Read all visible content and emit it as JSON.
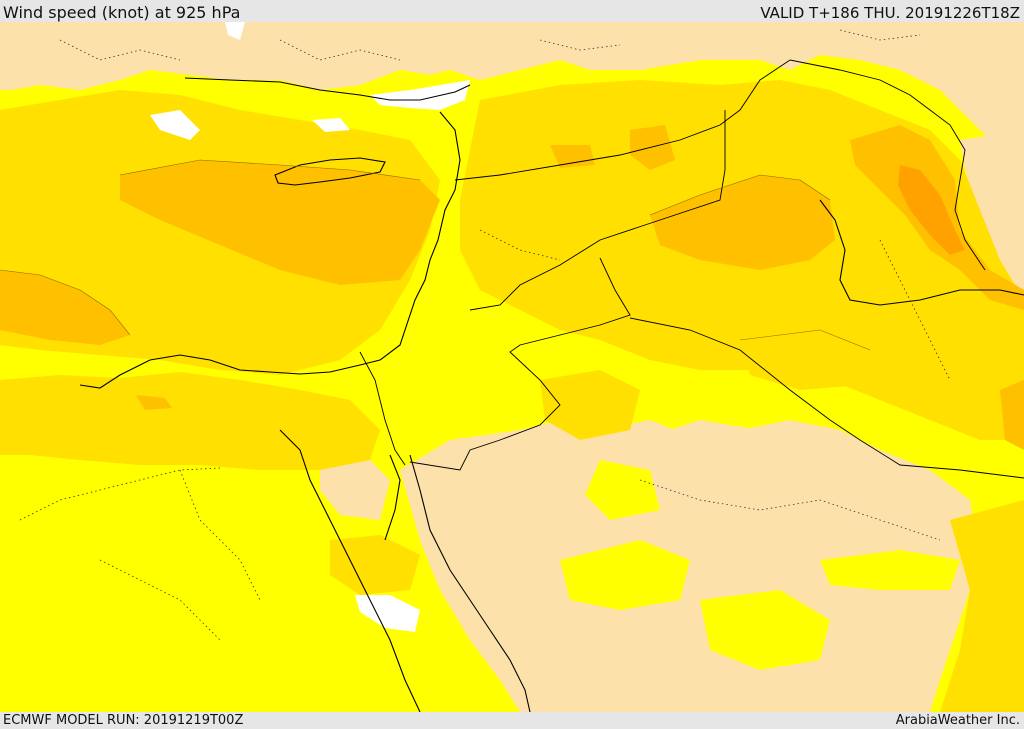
{
  "header": {
    "title": "Wind speed (knot) at 925 hPa",
    "valid": "VALID T+186 THU. 20191226T18Z"
  },
  "footer": {
    "model_run": "ECMWF MODEL RUN: 20191219T00Z",
    "credit": "ArabiaWeather Inc."
  },
  "colors": {
    "calm": "#ffffff",
    "band_low": "#ffffff",
    "band_1": "#fde1ab",
    "band_2": "#ffff00",
    "band_3": "#ffe000",
    "band_4": "#ffc000",
    "band_5": "#ffa200",
    "border": "#000000"
  }
}
